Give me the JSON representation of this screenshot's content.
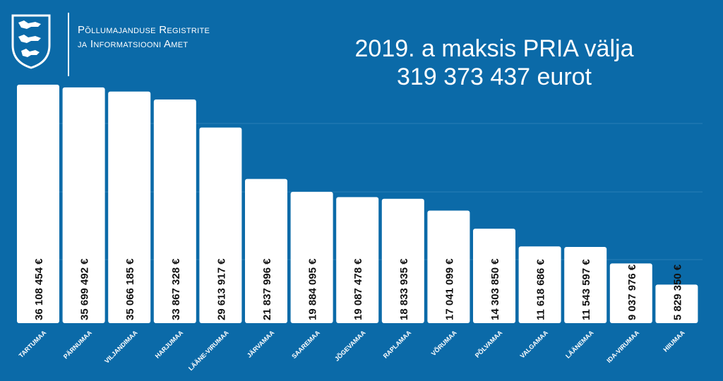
{
  "organization": {
    "line1": "Põllumajanduse Registrite",
    "line2": "ja Informatsiooni Amet",
    "logo_icon": "coat-of-arms-three-lions-icon"
  },
  "colors": {
    "background": "#0b6aa8",
    "bar": "#ffffff",
    "text": "#ffffff",
    "label": "#111111"
  },
  "chart_data": {
    "type": "bar",
    "title": "2019. a maksis PRIA välja",
    "subtitle": "319 373 437 eurot",
    "xlabel": "",
    "ylabel": "",
    "ylim": [
      0,
      36108454
    ],
    "grid": true,
    "categories": [
      "TARTUMAA",
      "PÄRNUMAA",
      "VILJANDIMAA",
      "HARJUMAA",
      "LÄÄNE-VIRUMAA",
      "JÄRVAMAA",
      "SAAREMAA",
      "JÕGEVAMAA",
      "RAPLAMAA",
      "VÕRUMAA",
      "PÕLVAMAA",
      "VALGAMAA",
      "LÄÄNEMAA",
      "IDA-VIRUMAA",
      "HIIUMAA"
    ],
    "values": [
      36108454,
      35699492,
      35066185,
      33867328,
      29613917,
      21837996,
      19884095,
      19087478,
      18833935,
      17041099,
      14303850,
      11618686,
      11543597,
      9037976,
      5829350
    ],
    "value_labels": [
      "36 108 454 €",
      "35 699 492 €",
      "35 066 185 €",
      "33 867 328 €",
      "29 613 917 €",
      "21 837 996 €",
      "19 884 095 €",
      "19 087 478 €",
      "18 833 935 €",
      "17 041 099 €",
      "14 303 850 €",
      "11 618 686 €",
      "11 543 597 €",
      "9 037 976 €",
      "5 829 350 €"
    ]
  }
}
